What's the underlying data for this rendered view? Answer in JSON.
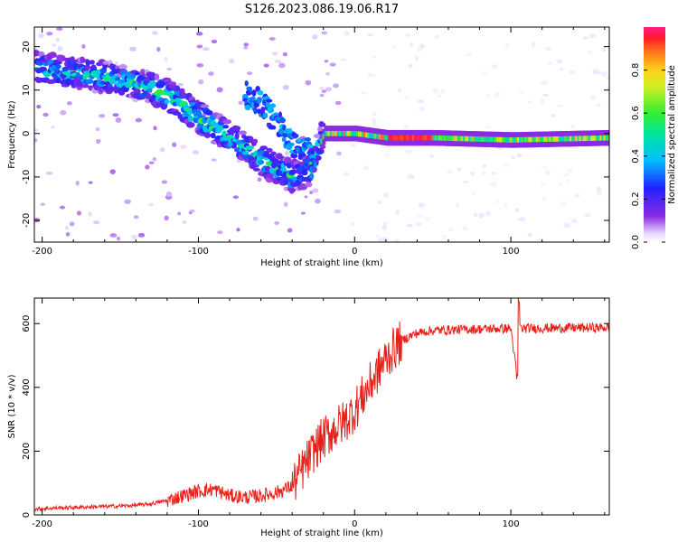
{
  "title": "S126.2023.086.19.06.R17",
  "chart_data": [
    {
      "type": "heatmap",
      "xlabel": "Height of straight line (km)",
      "ylabel": "Frequency (Hz)",
      "xlim": [
        -205,
        163
      ],
      "ylim": [
        -25,
        24.5
      ],
      "xticks": [
        -200,
        -100,
        0,
        100
      ],
      "yticks": [
        -20,
        -10,
        0,
        10,
        20
      ],
      "colorbar": {
        "label": "Normalized spectral amplitude",
        "range": [
          0.0,
          1.0
        ],
        "ticks": [
          0.0,
          0.2,
          0.4,
          0.6,
          0.8
        ],
        "tick_labels": [
          "0.0",
          "0.2",
          "0.4",
          "0.6",
          "0.8"
        ],
        "colormap": "rainbow (white-violet-blue-cyan-green-yellow-orange-red-magenta)"
      },
      "ridges": [
        {
          "name": "main trace",
          "points": [
            [
              -200,
              15
            ],
            [
              -180,
              14
            ],
            [
              -160,
              13
            ],
            [
              -140,
              11.5
            ],
            [
              -120,
              9
            ],
            [
              -100,
              4
            ],
            [
              -80,
              -1
            ],
            [
              -70,
              -3
            ],
            [
              -60,
              -6
            ],
            [
              -50,
              -8
            ],
            [
              -40,
              -10
            ],
            [
              -30,
              -9
            ],
            [
              -20,
              0
            ],
            [
              0,
              0
            ],
            [
              20,
              -1
            ],
            [
              50,
              -1
            ],
            [
              100,
              -1.5
            ],
            [
              163,
              -1
            ]
          ]
        },
        {
          "name": "secondary trace",
          "points": [
            [
              -70,
              9
            ],
            [
              -60,
              7
            ],
            [
              -50,
              3
            ],
            [
              -40,
              -2
            ],
            [
              -30,
              -4
            ],
            [
              -25,
              -10
            ]
          ]
        }
      ]
    },
    {
      "type": "line",
      "xlabel": "Height of straight line (km)",
      "ylabel": "SNR (10 * v/v)",
      "xlim": [
        -205,
        163
      ],
      "ylim": [
        0,
        680
      ],
      "xticks": [
        -200,
        -100,
        0,
        100
      ],
      "yticks": [
        0,
        200,
        400,
        600
      ],
      "series": [
        {
          "color": "#e8201a",
          "x": [
            -205,
            -190,
            -170,
            -150,
            -140,
            -130,
            -120,
            -110,
            -100,
            -90,
            -80,
            -70,
            -60,
            -50,
            -40,
            -35,
            -30,
            -25,
            -20,
            -15,
            -10,
            -5,
            0,
            5,
            10,
            15,
            20,
            25,
            30,
            35,
            40,
            45,
            50,
            60,
            70,
            80,
            90,
            100,
            104,
            105,
            106,
            110,
            120,
            130,
            140,
            150,
            163
          ],
          "y": [
            18,
            22,
            25,
            28,
            30,
            35,
            45,
            60,
            75,
            80,
            60,
            55,
            60,
            70,
            90,
            130,
            170,
            210,
            240,
            260,
            280,
            300,
            330,
            370,
            410,
            450,
            490,
            520,
            545,
            560,
            570,
            575,
            578,
            580,
            582,
            583,
            584,
            585,
            430,
            670,
            585,
            585,
            586,
            586,
            587,
            587,
            588
          ]
        }
      ]
    }
  ]
}
